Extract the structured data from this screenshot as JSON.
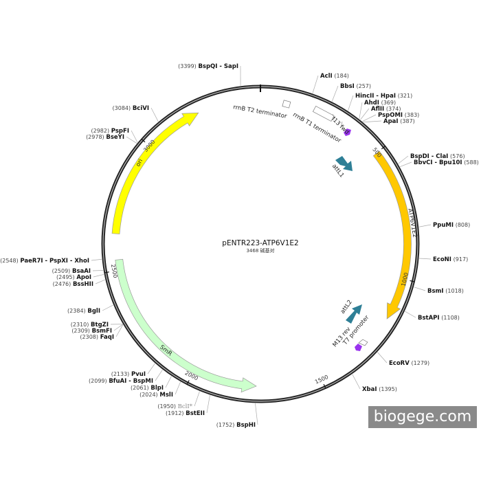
{
  "plasmid": {
    "name": "pENTR223-ATP6V1E2",
    "size_label": "3468 碱基对",
    "length_bp": 3468
  },
  "colors": {
    "ori": "#ffff00",
    "ATP6V1E2": "#ffc800",
    "SmR": "#ccffcc",
    "att": "#2e7f96",
    "M13": "#9933ee",
    "T7": "#ffffff"
  },
  "features": [
    {
      "label": "ori",
      "start": 2640,
      "end": 3224,
      "direction": "cw",
      "color": "#ffff00"
    },
    {
      "label": "ATP6V1E2",
      "start": 501,
      "end": 1162,
      "direction": "cw",
      "color": "#ffc800"
    },
    {
      "label": "SmR",
      "start": 1750,
      "end": 2540,
      "direction": "ccw",
      "color": "#ccffcc"
    },
    {
      "label": "attL1"
    },
    {
      "label": "attL2"
    },
    {
      "label": "M13 fwd"
    },
    {
      "label": "M13 rev"
    },
    {
      "label": "T7 promoter"
    },
    {
      "label": "rrnB T2 terminator"
    },
    {
      "label": "rrnB T1 terminator"
    }
  ],
  "ticks": [
    "500",
    "1000",
    "1500",
    "2000",
    "2500",
    "3000"
  ],
  "sites": [
    {
      "name": "AclI",
      "pos": "(184)"
    },
    {
      "name": "BbsI",
      "pos": "(257)"
    },
    {
      "name": "HincII - HpaI",
      "pos": "(321)"
    },
    {
      "name": "AhdI",
      "pos": "(369)"
    },
    {
      "name": "AflII",
      "pos": "(374)"
    },
    {
      "name": "PspOMI",
      "pos": "(383)"
    },
    {
      "name": "ApaI",
      "pos": "(387)"
    },
    {
      "name": "BspDI - ClaI",
      "pos": "(576)"
    },
    {
      "name": "BbvCI - Bpu10I",
      "pos": "(588)"
    },
    {
      "name": "PpuMI",
      "pos": "(808)"
    },
    {
      "name": "EcoNI",
      "pos": "(917)"
    },
    {
      "name": "BsmI",
      "pos": "(1018)"
    },
    {
      "name": "BstAPI",
      "pos": "(1108)"
    },
    {
      "name": "EcoRV",
      "pos": "(1279)"
    },
    {
      "name": "XbaI",
      "pos": "(1395)"
    },
    {
      "name": "BspHI",
      "pos": "(1752)"
    },
    {
      "name": "BstEII",
      "pos": "(1912)"
    },
    {
      "name": "BclI*",
      "pos": "(1950)"
    },
    {
      "name": "MslI",
      "pos": "(2024)"
    },
    {
      "name": "BlpI",
      "pos": "(2061)"
    },
    {
      "name": "BfuAI - BspMI",
      "pos": "(2099)"
    },
    {
      "name": "PvuI",
      "pos": "(2133)"
    },
    {
      "name": "FaqI",
      "pos": "(2308)"
    },
    {
      "name": "BsmFI",
      "pos": "(2309)"
    },
    {
      "name": "BtgZI",
      "pos": "(2310)"
    },
    {
      "name": "BglI",
      "pos": "(2384)"
    },
    {
      "name": "BssHII",
      "pos": "(2476)"
    },
    {
      "name": "ApoI",
      "pos": "(2495)"
    },
    {
      "name": "BsaAI",
      "pos": "(2509)"
    },
    {
      "name": "PaeR7I - PspXI - XhoI",
      "pos": "(2548)"
    },
    {
      "name": "BseYI",
      "pos": "(2978)"
    },
    {
      "name": "PspFI",
      "pos": "(2982)"
    },
    {
      "name": "BciVI",
      "pos": "(3084)"
    },
    {
      "name": "BspQI - SapI",
      "pos": "(3399)"
    }
  ],
  "watermark": "biogege.com"
}
